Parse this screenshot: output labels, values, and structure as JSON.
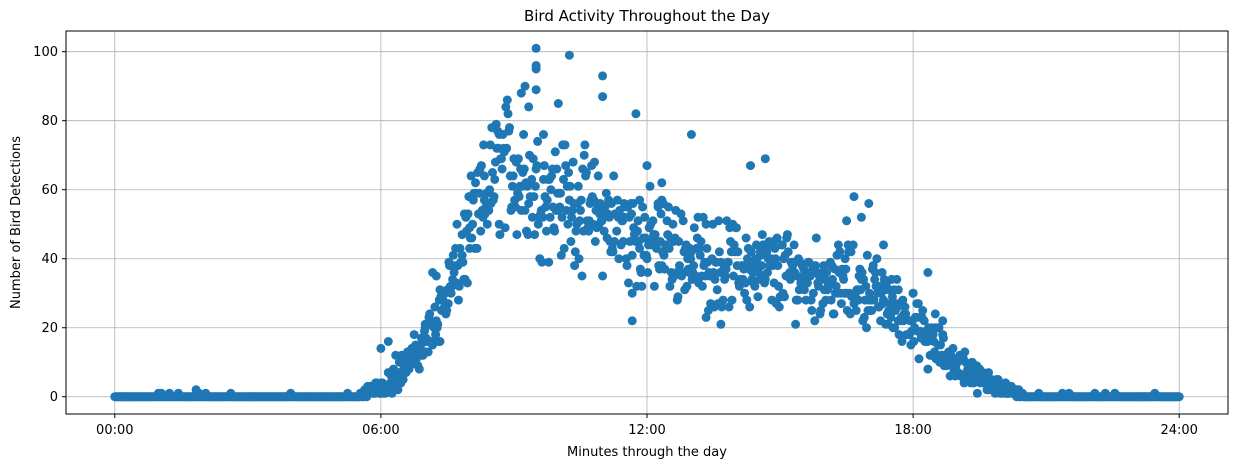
{
  "chart_data": {
    "type": "scatter",
    "title": "Bird Activity Throughout the Day",
    "xlabel": "Minutes through the day",
    "ylabel": "Number of Bird Detections",
    "xlim": [
      -66,
      1506
    ],
    "ylim": [
      -5,
      106
    ],
    "grid": true,
    "legend": "none",
    "marker_color": "#1f77b4",
    "x_unit": "minutes since 00:00",
    "x_ticks": [
      {
        "value": 0,
        "label": "00:00"
      },
      {
        "value": 360,
        "label": "06:00"
      },
      {
        "value": 720,
        "label": "12:00"
      },
      {
        "value": 1080,
        "label": "18:00"
      },
      {
        "value": 1440,
        "label": "24:00"
      }
    ],
    "y_ticks": [
      {
        "value": 0,
        "label": "0"
      },
      {
        "value": 20,
        "label": "20"
      },
      {
        "value": 40,
        "label": "40"
      },
      {
        "value": 60,
        "label": "60"
      },
      {
        "value": 80,
        "label": "80"
      },
      {
        "value": 100,
        "label": "100"
      }
    ],
    "profile": [
      [
        0,
        0
      ],
      [
        300,
        0
      ],
      [
        330,
        0.5
      ],
      [
        360,
        3
      ],
      [
        390,
        8
      ],
      [
        420,
        16
      ],
      [
        450,
        30
      ],
      [
        480,
        46
      ],
      [
        510,
        62
      ],
      [
        525,
        68
      ],
      [
        540,
        66
      ],
      [
        570,
        60
      ],
      [
        600,
        58
      ],
      [
        630,
        55
      ],
      [
        660,
        52
      ],
      [
        690,
        48
      ],
      [
        720,
        45
      ],
      [
        750,
        43
      ],
      [
        780,
        40
      ],
      [
        810,
        39
      ],
      [
        840,
        38
      ],
      [
        870,
        37
      ],
      [
        900,
        36
      ],
      [
        930,
        35
      ],
      [
        960,
        34
      ],
      [
        990,
        33
      ],
      [
        1020,
        31
      ],
      [
        1050,
        27
      ],
      [
        1080,
        21
      ],
      [
        1110,
        15
      ],
      [
        1140,
        9
      ],
      [
        1170,
        5
      ],
      [
        1200,
        3
      ],
      [
        1230,
        0.5
      ],
      [
        1260,
        0
      ],
      [
        1440,
        0
      ]
    ],
    "points": [
      [
        570,
        101
      ],
      [
        570,
        96
      ],
      [
        570,
        95
      ],
      [
        570,
        89
      ],
      [
        615,
        99
      ],
      [
        660,
        93
      ],
      [
        660,
        87
      ],
      [
        555,
        90
      ],
      [
        550,
        88
      ],
      [
        560,
        84
      ],
      [
        600,
        85
      ],
      [
        705,
        82
      ],
      [
        580,
        76
      ],
      [
        520,
        76
      ],
      [
        780,
        76
      ],
      [
        880,
        69
      ],
      [
        860,
        67
      ],
      [
        720,
        67
      ],
      [
        1000,
        58
      ],
      [
        1020,
        56
      ],
      [
        1010,
        52
      ],
      [
        1040,
        44
      ],
      [
        740,
        57
      ],
      [
        740,
        62
      ],
      [
        735,
        55
      ],
      [
        500,
        64
      ],
      [
        700,
        22
      ],
      [
        700,
        30
      ],
      [
        800,
        23
      ],
      [
        820,
        21
      ],
      [
        710,
        57
      ],
      [
        990,
        51
      ],
      [
        1060,
        31
      ],
      [
        1080,
        30
      ],
      [
        1100,
        36
      ],
      [
        1110,
        24
      ],
      [
        1120,
        22
      ],
      [
        1100,
        8
      ],
      [
        1150,
        13
      ],
      [
        1160,
        10
      ],
      [
        470,
        47
      ],
      [
        480,
        49
      ],
      [
        420,
        20
      ],
      [
        440,
        16
      ],
      [
        420,
        13
      ],
      [
        400,
        10
      ],
      [
        370,
        16
      ],
      [
        380,
        12
      ],
      [
        430,
        36
      ],
      [
        435,
        35
      ],
      [
        110,
        2
      ],
      [
        360,
        14
      ]
    ]
  }
}
